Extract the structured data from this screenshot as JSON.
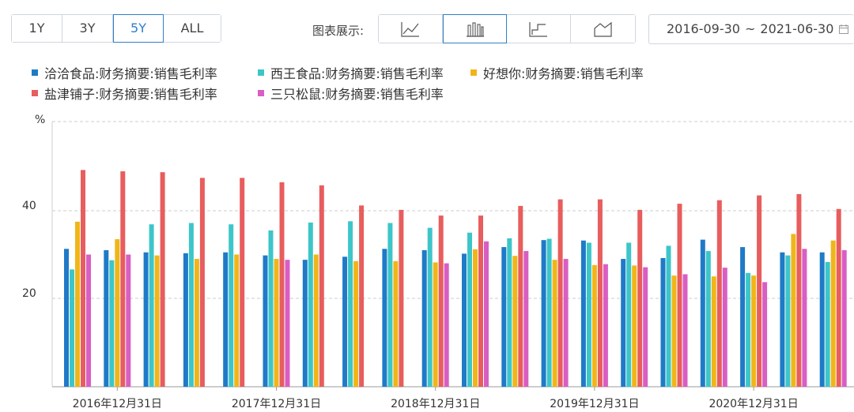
{
  "toolbar": {
    "ranges": [
      "1Y",
      "3Y",
      "5Y",
      "ALL"
    ],
    "active_range": "5Y",
    "chart_type_label": "图表展示:",
    "chart_types": [
      "line-chart-icon",
      "bar-chart-icon",
      "step-chart-icon",
      "area-chart-icon"
    ],
    "active_chart_type": "bar-chart-icon",
    "date_start": "2016-09-30",
    "date_sep": "~",
    "date_end": "2021-06-30"
  },
  "colors": {
    "accent": "#2f7fc9",
    "border": "#cfd6de",
    "grid": "#cccccc"
  },
  "chart_data": {
    "type": "bar",
    "ylabel": "%",
    "ylim": [
      0,
      60
    ],
    "yticks": [
      20,
      40
    ],
    "grid": "horizontal dashed",
    "legend_position": "top",
    "x": [
      "2016-09-30",
      "2016-12-31",
      "2017-03-31",
      "2017-06-30",
      "2017-09-30",
      "2017-12-31",
      "2018-03-31",
      "2018-06-30",
      "2018-09-30",
      "2018-12-31",
      "2019-03-31",
      "2019-06-30",
      "2019-09-30",
      "2019-12-31",
      "2020-03-31",
      "2020-06-30",
      "2020-09-30",
      "2020-12-31",
      "2021-03-31",
      "2021-06-30"
    ],
    "x_tick_labels": [
      {
        "index": 1,
        "label": "2016年12月31日"
      },
      {
        "index": 5,
        "label": "2017年12月31日"
      },
      {
        "index": 9,
        "label": "2018年12月31日"
      },
      {
        "index": 13,
        "label": "2019年12月31日"
      },
      {
        "index": 17,
        "label": "2020年12月31日"
      }
    ],
    "series": [
      {
        "name": "洽洽食品:财务摘要:销售毛利率",
        "color": "#1f7ac7",
        "values": [
          31.3,
          31.0,
          30.5,
          30.3,
          30.5,
          29.8,
          28.8,
          29.5,
          31.3,
          31.0,
          30.2,
          31.7,
          33.3,
          33.2,
          29.0,
          29.2,
          33.4,
          31.7,
          30.5,
          30.5
        ]
      },
      {
        "name": "西王食品:财务摘要:销售毛利率",
        "color": "#3cc6c9",
        "values": [
          26.6,
          28.7,
          36.9,
          37.2,
          36.9,
          35.5,
          37.3,
          37.6,
          37.2,
          36.1,
          35.0,
          33.7,
          33.6,
          32.7,
          32.7,
          32.0,
          30.8,
          25.8,
          29.8,
          28.3
        ]
      },
      {
        "name": "好想你:财务摘要:销售毛利率",
        "color": "#f0b619",
        "values": [
          37.5,
          33.5,
          29.8,
          29.0,
          30.0,
          29.0,
          30.0,
          28.5,
          28.5,
          28.2,
          31.2,
          29.7,
          28.8,
          27.6,
          27.5,
          25.2,
          25.0,
          25.2,
          34.7,
          33.2
        ]
      },
      {
        "name": "盐津铺子:财务摘要:销售毛利率",
        "color": "#e85d5d",
        "values": [
          49.3,
          49.0,
          48.8,
          47.5,
          47.5,
          46.5,
          45.8,
          41.2,
          40.2,
          38.9,
          38.9,
          41.1,
          42.6,
          42.6,
          40.2,
          41.6,
          42.4,
          43.5,
          43.8,
          40.4
        ]
      },
      {
        "name": "三只松鼠:财务摘要:销售毛利率",
        "color": "#d95ec3",
        "values": [
          30.0,
          30.0,
          null,
          null,
          null,
          28.8,
          null,
          null,
          null,
          28.0,
          33.0,
          30.8,
          29.0,
          27.8,
          27.1,
          25.5,
          27.0,
          23.7,
          31.3,
          31.0
        ]
      }
    ]
  }
}
